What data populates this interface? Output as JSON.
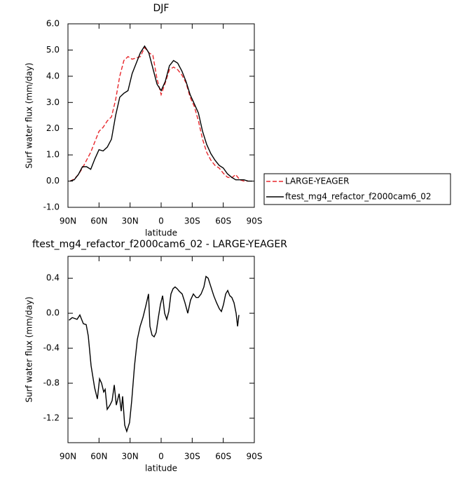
{
  "chart_data": [
    {
      "type": "line",
      "title": "DJF",
      "xlabel": "latitude",
      "ylabel": "Surf water flux (mm/day)",
      "x": [
        88,
        84,
        80,
        76,
        72,
        68,
        64,
        60,
        56,
        52,
        48,
        44,
        40,
        36,
        32,
        28,
        24,
        20,
        16,
        12,
        8,
        4,
        0,
        -4,
        -8,
        -12,
        -16,
        -20,
        -24,
        -28,
        -32,
        -36,
        -40,
        -44,
        -48,
        -52,
        -56,
        -60,
        -64,
        -68,
        -72,
        -76,
        -80,
        -84,
        -88
      ],
      "series": [
        {
          "name": "LARGE-YEAGER",
          "color": "#e8262b",
          "linestyle": "dashed",
          "values": [
            0.0,
            0.08,
            0.25,
            0.5,
            0.8,
            1.1,
            1.5,
            1.9,
            2.05,
            2.3,
            2.45,
            3.1,
            4.0,
            4.6,
            4.75,
            4.65,
            4.7,
            4.75,
            5.1,
            4.9,
            4.8,
            3.9,
            3.3,
            3.75,
            4.25,
            4.35,
            4.25,
            4.05,
            3.75,
            3.2,
            2.85,
            2.3,
            1.6,
            1.1,
            0.8,
            0.6,
            0.5,
            0.3,
            0.15,
            0.12,
            0.25,
            0.05,
            0.0,
            0.0,
            null
          ]
        },
        {
          "name": "ftest_mg4_refactor_f2000cam6_02",
          "color": "#000000",
          "linestyle": "solid",
          "values": [
            0.0,
            0.05,
            0.25,
            0.55,
            0.55,
            0.45,
            0.85,
            1.2,
            1.15,
            1.3,
            1.6,
            2.5,
            3.2,
            3.35,
            3.45,
            4.1,
            4.5,
            4.9,
            5.15,
            4.9,
            4.3,
            3.7,
            3.45,
            3.8,
            4.4,
            4.6,
            4.5,
            4.2,
            3.8,
            3.3,
            2.95,
            2.6,
            1.9,
            1.4,
            1.05,
            0.8,
            0.6,
            0.5,
            0.28,
            0.15,
            0.05,
            0.05,
            0.05,
            0.0,
            0.0
          ]
        }
      ],
      "xlim": [
        90,
        -90
      ],
      "xticks": [
        {
          "value": 90,
          "label": "90N"
        },
        {
          "value": 60,
          "label": "60N"
        },
        {
          "value": 30,
          "label": "30N"
        },
        0,
        {
          "value": -30,
          "label": "30S"
        },
        {
          "value": -60,
          "label": "60S"
        },
        {
          "value": -90,
          "label": "90S"
        }
      ],
      "ylim": [
        -1.0,
        6.0
      ],
      "yticks": [
        {
          "value": -1,
          "label": "-1.0"
        },
        {
          "value": 0,
          "label": "0.0"
        },
        {
          "value": 1,
          "label": "1.0"
        },
        {
          "value": 2,
          "label": "2.0"
        },
        {
          "value": 3,
          "label": "3.0"
        },
        {
          "value": 4,
          "label": "4.0"
        },
        {
          "value": 5,
          "label": "5.0"
        },
        {
          "value": 6,
          "label": "6.0"
        }
      ],
      "legend": "right"
    },
    {
      "type": "line",
      "title": "ftest_mg4_refactor_f2000cam6_02 - LARGE-YEAGER",
      "xlabel": "latitude",
      "ylabel": "Surf water flux (mm/day)",
      "x": [
        89,
        85.9,
        81.2,
        78.5,
        75.1,
        72.4,
        70.4,
        67.7,
        64.3,
        61.6,
        59.5,
        57.5,
        55.5,
        54.1,
        52.1,
        49.4,
        47.4,
        45.3,
        43.3,
        40.6,
        38.6,
        37.2,
        35.2,
        33.2,
        30.5,
        28.4,
        25.7,
        23.0,
        20.3,
        17.6,
        14.9,
        12.2,
        10.8,
        8.8,
        6.8,
        4.8,
        2.7,
        0.7,
        -1.4,
        -3.4,
        -5.4,
        -7.4,
        -9.5,
        -11.5,
        -13.5,
        -15.5,
        -17.6,
        -20.3,
        -23.0,
        -25.7,
        -28.4,
        -31.1,
        -33.8,
        -35.9,
        -38.6,
        -41.3,
        -43.3,
        -45.4,
        -48.1,
        -50.8,
        -53.5,
        -56.2,
        -58.2,
        -60.2,
        -62.3,
        -64.3,
        -66.3,
        -68.3,
        -70.4,
        -72.4,
        -73.8,
        -75.1
      ],
      "series": [
        {
          "name": null,
          "color": "#000000",
          "linestyle": "solid",
          "values": [
            -0.08,
            -0.05,
            -0.07,
            -0.02,
            -0.12,
            -0.13,
            -0.26,
            -0.6,
            -0.85,
            -0.98,
            -0.75,
            -0.8,
            -0.9,
            -0.87,
            -1.1,
            -1.05,
            -1.0,
            -0.82,
            -1.05,
            -0.92,
            -1.12,
            -0.95,
            -1.28,
            -1.35,
            -1.25,
            -1.0,
            -0.6,
            -0.3,
            -0.15,
            -0.05,
            0.08,
            0.22,
            -0.15,
            -0.25,
            -0.27,
            -0.22,
            -0.05,
            0.1,
            0.2,
            0.0,
            -0.07,
            0.02,
            0.22,
            0.28,
            0.3,
            0.28,
            0.25,
            0.22,
            0.12,
            0.0,
            0.15,
            0.22,
            0.18,
            0.18,
            0.22,
            0.3,
            0.42,
            0.4,
            0.3,
            0.2,
            0.12,
            0.05,
            0.02,
            0.1,
            0.22,
            0.26,
            0.2,
            0.18,
            0.12,
            0.0,
            -0.15,
            -0.02
          ]
        }
      ],
      "xlim": [
        90,
        -90
      ],
      "xticks": [
        {
          "value": 90,
          "label": "90N"
        },
        {
          "value": 60,
          "label": "60N"
        },
        {
          "value": 30,
          "label": "30N"
        },
        0,
        {
          "value": -30,
          "label": "30S"
        },
        {
          "value": -60,
          "label": "60S"
        },
        {
          "value": -90,
          "label": "90S"
        }
      ],
      "ylim": [
        -1.48,
        0.65
      ],
      "yticks": [
        {
          "value": -1.2,
          "label": "-1.2"
        },
        {
          "value": -0.8,
          "label": "-0.8"
        },
        {
          "value": -0.4,
          "label": "-0.4"
        },
        {
          "value": 0,
          "label": "0.0"
        },
        {
          "value": 0.4,
          "label": "0.4"
        }
      ]
    }
  ]
}
